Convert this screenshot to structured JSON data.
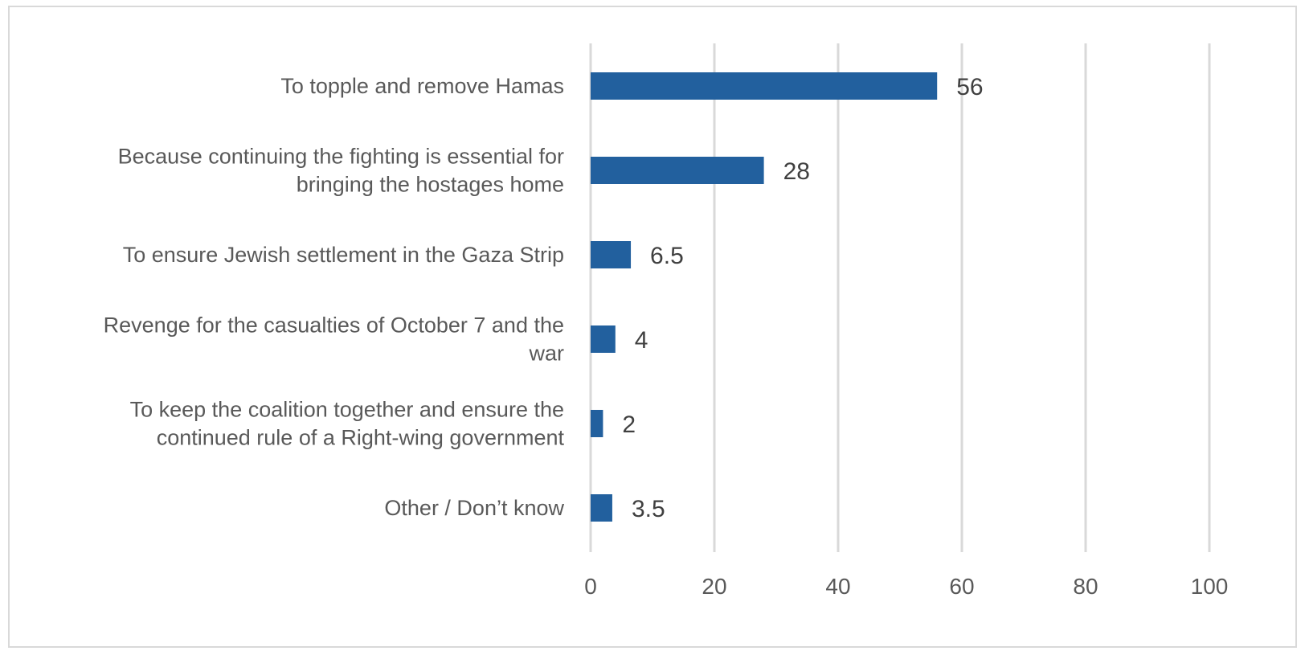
{
  "chart_data": {
    "type": "bar",
    "orientation": "horizontal",
    "categories": [
      [
        "To topple and remove Hamas"
      ],
      [
        "Because continuing the fighting is essential for",
        "bringing the hostages home"
      ],
      [
        "To ensure Jewish settlement in the Gaza Strip"
      ],
      [
        "Revenge for the casualties of October 7 and the",
        "war"
      ],
      [
        "To keep the coalition together and ensure the",
        "continued rule of a Right-wing government"
      ],
      [
        "Other / Don’t know"
      ]
    ],
    "values": [
      56,
      28,
      6.5,
      4,
      2,
      3.5
    ],
    "value_labels": [
      "56",
      "28",
      "6.5",
      "4",
      "2",
      "3.5"
    ],
    "xlim": [
      0,
      100
    ],
    "x_ticks": [
      0,
      20,
      40,
      60,
      80,
      100
    ],
    "x_tick_labels": [
      "0",
      "20",
      "40",
      "60",
      "80",
      "100"
    ],
    "grid": true,
    "bar_color": "#22609e",
    "title": "",
    "xlabel": "",
    "ylabel": ""
  }
}
